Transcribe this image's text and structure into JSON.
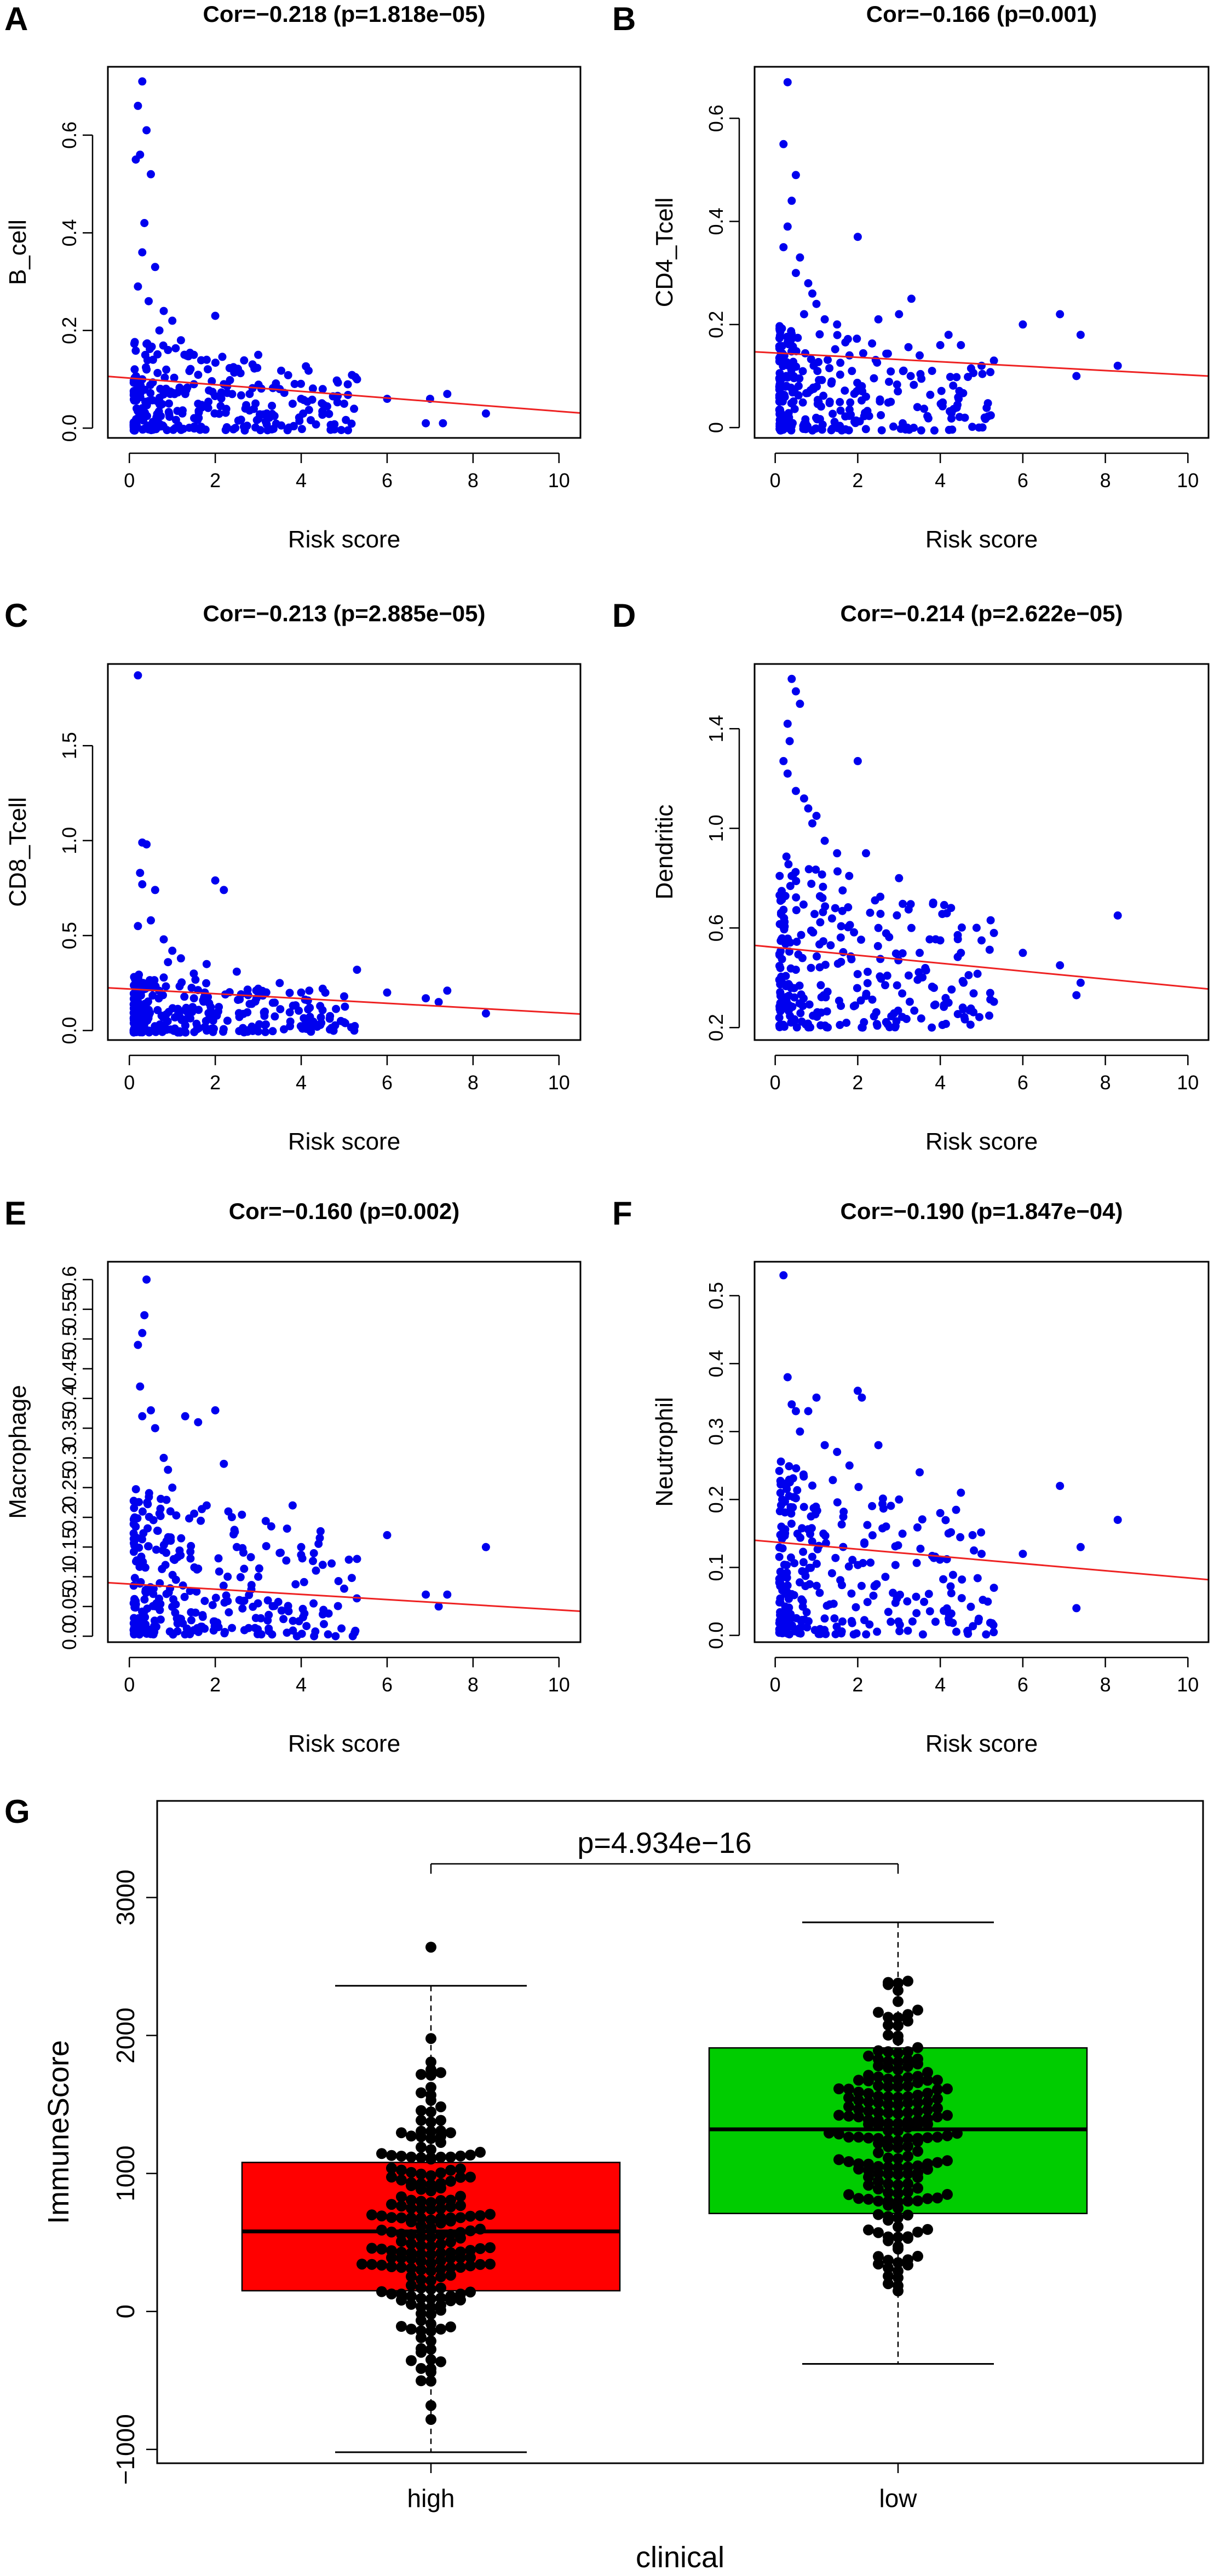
{
  "colors": {
    "points": "#0000ee",
    "regression": "#ee2222",
    "box_high": "#ff0000",
    "box_low": "#00cc00",
    "beeswarm": "#000000"
  },
  "chart_data": [
    {
      "id": "A",
      "type": "scatter",
      "letter": "A",
      "title": "Cor=−0.218 (p=1.818e−05)",
      "xlabel": "Risk score",
      "ylabel": "B_cell",
      "xlim": [
        -0.5,
        10.5
      ],
      "ylim": [
        -0.02,
        0.74
      ],
      "xticks": [
        0,
        2,
        4,
        6,
        8,
        10
      ],
      "xtick_labels": [
        "0",
        "2",
        "4",
        "6",
        "8",
        "10"
      ],
      "yticks": [
        0.0,
        0.2,
        0.4,
        0.6
      ],
      "ytick_labels": [
        "0.0",
        "0.2",
        "0.4",
        "0.6"
      ],
      "regression": {
        "x": [
          -0.5,
          10.5
        ],
        "y": [
          0.106,
          0.031
        ]
      },
      "points_x": [
        0.3,
        0.2,
        0.4,
        0.25,
        0.15,
        0.5,
        0.35,
        0.3,
        0.6,
        0.2,
        0.45,
        0.8,
        1.0,
        0.7,
        1.2,
        0.9,
        1.5,
        0.55,
        0.4,
        0.3,
        2.0,
        2.5,
        1.8,
        3.0,
        3.5,
        2.2,
        1.6,
        4.0,
        2.8,
        5.3,
        4.5,
        3.8,
        5.0,
        6.0,
        7.0,
        7.4,
        6.9,
        7.3,
        8.3,
        2.7,
        3.2
      ],
      "points_y": [
        0.71,
        0.66,
        0.61,
        0.56,
        0.55,
        0.52,
        0.42,
        0.36,
        0.33,
        0.29,
        0.26,
        0.24,
        0.22,
        0.2,
        0.18,
        0.16,
        0.15,
        0.14,
        0.12,
        0.1,
        0.23,
        0.12,
        0.14,
        0.15,
        0.08,
        0.09,
        0.05,
        0.06,
        0.07,
        0.1,
        0.08,
        0.05,
        0.05,
        0.06,
        0.06,
        0.07,
        0.01,
        0.01,
        0.03,
        0.04,
        0.03
      ],
      "dense": {
        "x_max": 5.3,
        "y_max": 0.18,
        "count": 260,
        "seed": 11
      }
    },
    {
      "id": "B",
      "type": "scatter",
      "letter": "B",
      "title": "Cor=−0.166 (p=0.001)",
      "xlabel": "Risk score",
      "ylabel": "CD4_Tcell",
      "xlim": [
        -0.5,
        10.5
      ],
      "ylim": [
        -0.02,
        0.7
      ],
      "xticks": [
        0,
        2,
        4,
        6,
        8,
        10
      ],
      "xtick_labels": [
        "0",
        "2",
        "4",
        "6",
        "8",
        "10"
      ],
      "yticks": [
        0.0,
        0.2,
        0.4,
        0.6
      ],
      "ytick_labels": [
        "0",
        "0.2",
        "0.4",
        "0.6"
      ],
      "regression": {
        "x": [
          -0.5,
          10.5
        ],
        "y": [
          0.147,
          0.1
        ]
      },
      "points_x": [
        0.3,
        0.2,
        0.5,
        0.4,
        0.3,
        0.2,
        0.6,
        0.5,
        0.8,
        0.9,
        1.0,
        0.7,
        1.2,
        1.5,
        2.0,
        2.5,
        3.0,
        3.3,
        3.5,
        1.8,
        4.0,
        4.5,
        5.0,
        5.3,
        4.2,
        6.0,
        6.9,
        7.4,
        8.3,
        7.3,
        2.2,
        2.8,
        3.2,
        3.8
      ],
      "points_y": [
        0.67,
        0.55,
        0.49,
        0.44,
        0.39,
        0.35,
        0.33,
        0.3,
        0.28,
        0.26,
        0.24,
        0.22,
        0.21,
        0.2,
        0.37,
        0.21,
        0.22,
        0.25,
        0.14,
        0.14,
        0.16,
        0.16,
        0.12,
        0.13,
        0.18,
        0.2,
        0.22,
        0.18,
        0.12,
        0.1,
        0.06,
        0.05,
        0.0,
        0.11
      ],
      "dense": {
        "x_max": 5.3,
        "y_max": 0.2,
        "count": 260,
        "seed": 22
      }
    },
    {
      "id": "C",
      "type": "scatter",
      "letter": "C",
      "title": "Cor=−0.213 (p=2.885e−05)",
      "xlabel": "Risk score",
      "ylabel": "CD8_Tcell",
      "xlim": [
        -0.5,
        10.5
      ],
      "ylim": [
        -0.05,
        1.93
      ],
      "xticks": [
        0,
        2,
        4,
        6,
        8,
        10
      ],
      "xtick_labels": [
        "0",
        "2",
        "4",
        "6",
        "8",
        "10"
      ],
      "yticks": [
        0.0,
        0.5,
        1.0,
        1.5
      ],
      "ytick_labels": [
        "0.0",
        "0.5",
        "1.0",
        "1.5"
      ],
      "regression": {
        "x": [
          -0.5,
          10.5
        ],
        "y": [
          0.225,
          0.087
        ]
      },
      "points_x": [
        0.2,
        0.3,
        0.4,
        0.25,
        0.3,
        0.6,
        0.5,
        0.2,
        0.8,
        1.0,
        1.2,
        0.9,
        1.5,
        2.0,
        2.2,
        1.8,
        2.5,
        3.0,
        3.5,
        4.0,
        4.5,
        5.0,
        5.3,
        6.0,
        6.9,
        7.4,
        8.3,
        7.2,
        4.2,
        2.8
      ],
      "points_y": [
        1.87,
        0.99,
        0.98,
        0.83,
        0.77,
        0.74,
        0.58,
        0.55,
        0.48,
        0.42,
        0.38,
        0.36,
        0.3,
        0.79,
        0.74,
        0.35,
        0.31,
        0.22,
        0.25,
        0.2,
        0.22,
        0.18,
        0.32,
        0.2,
        0.17,
        0.21,
        0.09,
        0.15,
        0.12,
        0.14
      ],
      "dense": {
        "x_max": 5.3,
        "y_max": 0.3,
        "count": 270,
        "seed": 33
      }
    },
    {
      "id": "D",
      "type": "scatter",
      "letter": "D",
      "title": "Cor=−0.214 (p=2.622e−05)",
      "xlabel": "Risk score",
      "ylabel": "Dendritic",
      "xlim": [
        -0.5,
        10.5
      ],
      "ylim": [
        0.15,
        1.66
      ],
      "xticks": [
        0,
        2,
        4,
        6,
        8,
        10
      ],
      "xtick_labels": [
        "0",
        "2",
        "4",
        "6",
        "8",
        "10"
      ],
      "yticks": [
        0.2,
        0.6,
        1.0,
        1.4
      ],
      "ytick_labels": [
        "0.2",
        "0.6",
        "1.0",
        "1.4"
      ],
      "regression": {
        "x": [
          -0.5,
          10.5
        ],
        "y": [
          0.53,
          0.355
        ]
      },
      "points_x": [
        0.4,
        0.5,
        0.6,
        0.3,
        0.35,
        0.2,
        0.3,
        0.5,
        0.7,
        0.8,
        1.0,
        0.9,
        1.2,
        1.5,
        2.0,
        2.5,
        3.0,
        3.3,
        3.5,
        4.0,
        4.5,
        5.0,
        5.3,
        6.0,
        6.9,
        7.4,
        8.3,
        7.3,
        4.2,
        2.2
      ],
      "points_y": [
        1.6,
        1.55,
        1.5,
        1.42,
        1.35,
        1.27,
        1.22,
        1.15,
        1.12,
        1.08,
        1.05,
        1.02,
        0.95,
        0.9,
        1.27,
        0.6,
        0.8,
        0.6,
        0.5,
        0.55,
        0.5,
        0.55,
        0.58,
        0.5,
        0.45,
        0.38,
        0.65,
        0.33,
        0.3,
        0.9
      ],
      "dense": {
        "x_max": 5.3,
        "y_max": 0.9,
        "y_min": 0.2,
        "count": 260,
        "seed": 44
      }
    },
    {
      "id": "E",
      "type": "scatter",
      "letter": "E",
      "title": "Cor=−0.160 (p=0.002)",
      "xlabel": "Risk score",
      "ylabel": "Macrophage",
      "xlim": [
        -0.5,
        10.5
      ],
      "ylim": [
        -0.01,
        0.63
      ],
      "xticks": [
        0,
        2,
        4,
        6,
        8,
        10
      ],
      "xtick_labels": [
        "0",
        "2",
        "4",
        "6",
        "8",
        "10"
      ],
      "yticks": [
        0.0,
        0.05,
        0.1,
        0.15,
        0.2,
        0.25,
        0.3,
        0.35,
        0.4,
        0.45,
        0.5,
        0.55,
        0.6
      ],
      "ytick_labels": [
        "0.0",
        "0.05",
        "0.1",
        "0.15",
        "0.2",
        "0.25",
        "0.3",
        "0.35",
        "0.4",
        "0.45",
        "0.5",
        "0.55",
        "0.6"
      ],
      "regression": {
        "x": [
          -0.5,
          10.5
        ],
        "y": [
          0.09,
          0.042
        ]
      },
      "points_x": [
        0.4,
        0.35,
        0.3,
        0.2,
        0.25,
        0.5,
        0.3,
        0.6,
        0.8,
        0.9,
        1.0,
        1.3,
        1.6,
        2.0,
        2.2,
        1.8,
        2.5,
        3.0,
        3.5,
        3.8,
        4.0,
        4.5,
        5.0,
        5.3,
        6.0,
        6.9,
        7.4,
        8.3,
        7.2,
        4.3,
        3.9,
        4.8,
        5.2
      ],
      "points_y": [
        0.6,
        0.54,
        0.51,
        0.49,
        0.42,
        0.38,
        0.37,
        0.35,
        0.3,
        0.28,
        0.25,
        0.37,
        0.36,
        0.38,
        0.29,
        0.22,
        0.15,
        0.1,
        0.14,
        0.22,
        0.15,
        0.12,
        0.08,
        0.13,
        0.17,
        0.07,
        0.07,
        0.15,
        0.05,
        0.0,
        0.0,
        0.0,
        0.0
      ],
      "dense": {
        "x_max": 5.3,
        "y_max": 0.25,
        "count": 280,
        "seed": 55
      }
    },
    {
      "id": "F",
      "type": "scatter",
      "letter": "F",
      "title": "Cor=−0.190 (p=1.847e−04)",
      "xlabel": "Risk score",
      "ylabel": "Neutrophil",
      "xlim": [
        -0.5,
        10.5
      ],
      "ylim": [
        -0.01,
        0.55
      ],
      "xticks": [
        0,
        2,
        4,
        6,
        8,
        10
      ],
      "xtick_labels": [
        "0",
        "2",
        "4",
        "6",
        "8",
        "10"
      ],
      "yticks": [
        0.0,
        0.1,
        0.2,
        0.3,
        0.4,
        0.5
      ],
      "ytick_labels": [
        "0.0",
        "0.1",
        "0.2",
        "0.3",
        "0.4",
        "0.5"
      ],
      "regression": {
        "x": [
          -0.5,
          10.5
        ],
        "y": [
          0.14,
          0.082
        ]
      },
      "points_x": [
        0.2,
        0.3,
        0.4,
        0.5,
        0.6,
        0.8,
        1.0,
        1.2,
        1.5,
        2.0,
        2.1,
        1.8,
        2.5,
        3.0,
        3.5,
        4.0,
        4.2,
        4.5,
        5.0,
        5.3,
        6.0,
        6.9,
        7.4,
        8.3,
        7.3,
        3.2,
        2.8
      ],
      "points_y": [
        0.53,
        0.38,
        0.34,
        0.33,
        0.3,
        0.33,
        0.35,
        0.28,
        0.27,
        0.36,
        0.35,
        0.25,
        0.28,
        0.2,
        0.24,
        0.18,
        0.15,
        0.21,
        0.12,
        0.07,
        0.12,
        0.22,
        0.13,
        0.17,
        0.04,
        0.05,
        0.02
      ],
      "dense": {
        "x_max": 5.3,
        "y_max": 0.26,
        "count": 270,
        "seed": 66
      }
    },
    {
      "id": "G",
      "type": "box",
      "letter": "G",
      "xlabel": "clinical",
      "ylabel": "ImmuneScore",
      "annotation": "p=4.934e−16",
      "ylim": [
        -1100,
        3700
      ],
      "yticks": [
        -1000,
        0,
        1000,
        2000,
        3000
      ],
      "ytick_labels": [
        "−1000",
        "0",
        "1000",
        "2000",
        "3000"
      ],
      "categories": [
        "high",
        "low"
      ],
      "groups": [
        {
          "name": "high",
          "whisker_low": -1020,
          "q1": 150,
          "median": 580,
          "q3": 1080,
          "whisker_high": 2360,
          "outliers": [
            2640
          ],
          "count": 200,
          "seed": 7
        },
        {
          "name": "low",
          "whisker_low": -380,
          "q1": 710,
          "median": 1320,
          "q3": 1910,
          "whisker_high": 2820,
          "outliers": [],
          "count": 200,
          "seed": 9
        }
      ]
    }
  ]
}
